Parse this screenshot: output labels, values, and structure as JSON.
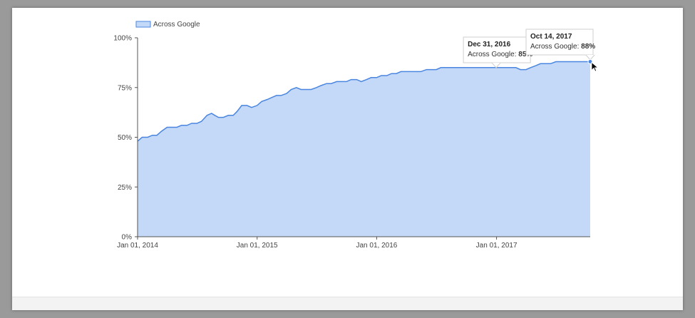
{
  "chart_data": {
    "type": "area",
    "legend": {
      "position": "top-left",
      "entries": [
        "Across Google"
      ]
    },
    "colors": {
      "line": "#4a86e0",
      "fill": "#c4d9f7",
      "axis": "#555555"
    },
    "grid": false,
    "ylim": [
      0,
      100
    ],
    "y_ticks": [
      {
        "value": 0,
        "label": "0%"
      },
      {
        "value": 25,
        "label": "25%"
      },
      {
        "value": 50,
        "label": "50%"
      },
      {
        "value": 75,
        "label": "75%"
      },
      {
        "value": 100,
        "label": "100%"
      }
    ],
    "x_ticks": [
      {
        "value": "2014-01-01",
        "label": "Jan 01, 2014"
      },
      {
        "value": "2015-01-01",
        "label": "Jan 01, 2015"
      },
      {
        "value": "2016-01-01",
        "label": "Jan 01, 2016"
      },
      {
        "value": "2017-01-01",
        "label": "Jan 01, 2017"
      }
    ],
    "xlim": [
      "2014-01-01",
      "2017-10-14"
    ],
    "series": [
      {
        "name": "Across Google",
        "points": [
          [
            "2014-01-01",
            48
          ],
          [
            "2014-01-15",
            50
          ],
          [
            "2014-02-01",
            50
          ],
          [
            "2014-02-15",
            51
          ],
          [
            "2014-03-01",
            51
          ],
          [
            "2014-03-15",
            53
          ],
          [
            "2014-04-01",
            55
          ],
          [
            "2014-04-15",
            55
          ],
          [
            "2014-05-01",
            55
          ],
          [
            "2014-05-15",
            56
          ],
          [
            "2014-06-01",
            56
          ],
          [
            "2014-06-15",
            57
          ],
          [
            "2014-07-01",
            57
          ],
          [
            "2014-07-15",
            58
          ],
          [
            "2014-08-01",
            61
          ],
          [
            "2014-08-15",
            62
          ],
          [
            "2014-08-25",
            61
          ],
          [
            "2014-09-05",
            60
          ],
          [
            "2014-09-20",
            60
          ],
          [
            "2014-10-05",
            61
          ],
          [
            "2014-10-20",
            61
          ],
          [
            "2014-11-01",
            63
          ],
          [
            "2014-11-15",
            66
          ],
          [
            "2014-12-01",
            66
          ],
          [
            "2014-12-15",
            65
          ],
          [
            "2015-01-01",
            66
          ],
          [
            "2015-01-15",
            68
          ],
          [
            "2015-02-01",
            69
          ],
          [
            "2015-02-15",
            70
          ],
          [
            "2015-03-01",
            71
          ],
          [
            "2015-03-15",
            71
          ],
          [
            "2015-04-01",
            72
          ],
          [
            "2015-04-15",
            74
          ],
          [
            "2015-05-01",
            75
          ],
          [
            "2015-05-15",
            74
          ],
          [
            "2015-06-01",
            74
          ],
          [
            "2015-06-15",
            74
          ],
          [
            "2015-07-01",
            75
          ],
          [
            "2015-07-15",
            76
          ],
          [
            "2015-08-01",
            77
          ],
          [
            "2015-08-15",
            77
          ],
          [
            "2015-09-01",
            78
          ],
          [
            "2015-09-15",
            78
          ],
          [
            "2015-10-01",
            78
          ],
          [
            "2015-10-15",
            79
          ],
          [
            "2015-11-01",
            79
          ],
          [
            "2015-11-15",
            78
          ],
          [
            "2015-12-01",
            79
          ],
          [
            "2015-12-15",
            80
          ],
          [
            "2016-01-01",
            80
          ],
          [
            "2016-01-15",
            81
          ],
          [
            "2016-02-01",
            81
          ],
          [
            "2016-02-15",
            82
          ],
          [
            "2016-03-01",
            82
          ],
          [
            "2016-03-15",
            83
          ],
          [
            "2016-04-01",
            83
          ],
          [
            "2016-04-15",
            83
          ],
          [
            "2016-05-01",
            83
          ],
          [
            "2016-05-15",
            83
          ],
          [
            "2016-06-01",
            84
          ],
          [
            "2016-06-15",
            84
          ],
          [
            "2016-07-01",
            84
          ],
          [
            "2016-07-15",
            85
          ],
          [
            "2016-08-01",
            85
          ],
          [
            "2016-09-01",
            85
          ],
          [
            "2016-10-01",
            85
          ],
          [
            "2016-11-01",
            85
          ],
          [
            "2016-12-01",
            85
          ],
          [
            "2016-12-31",
            85
          ],
          [
            "2017-01-15",
            85
          ],
          [
            "2017-02-01",
            85
          ],
          [
            "2017-02-15",
            85
          ],
          [
            "2017-03-01",
            85
          ],
          [
            "2017-03-15",
            84
          ],
          [
            "2017-04-01",
            84
          ],
          [
            "2017-04-15",
            85
          ],
          [
            "2017-05-01",
            86
          ],
          [
            "2017-05-15",
            87
          ],
          [
            "2017-06-01",
            87
          ],
          [
            "2017-06-15",
            87
          ],
          [
            "2017-07-01",
            88
          ],
          [
            "2017-07-15",
            88
          ],
          [
            "2017-08-01",
            88
          ],
          [
            "2017-08-15",
            88
          ],
          [
            "2017-09-01",
            88
          ],
          [
            "2017-09-15",
            88
          ],
          [
            "2017-10-01",
            88
          ],
          [
            "2017-10-14",
            88
          ]
        ]
      }
    ],
    "annotations": [
      {
        "date": "2016-12-31",
        "date_label": "Dec 31, 2016",
        "series_label": "Across Google:",
        "value_label": "85%"
      },
      {
        "date": "2017-10-14",
        "date_label": "Oct 14, 2017",
        "series_label": "Across Google:",
        "value_label": "88%"
      }
    ]
  }
}
